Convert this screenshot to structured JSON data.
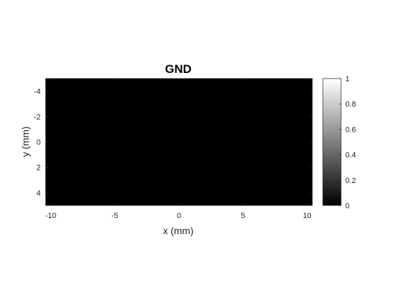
{
  "chart_data": {
    "type": "heatmap",
    "title": "GND",
    "xlabel": "x (mm)",
    "ylabel": "y (mm)",
    "xlim": [
      -10.4,
      10.4
    ],
    "ylim": [
      -5,
      5
    ],
    "y_reversed": true,
    "xticks": [
      -10,
      -5,
      0,
      5,
      10
    ],
    "yticks": [
      -4,
      -2,
      0,
      2,
      4
    ],
    "values": [
      [
        0
      ]
    ],
    "colormap": "gray",
    "clim": [
      0,
      1
    ],
    "colorbar": {
      "ticks": [
        0,
        0.2,
        0.4,
        0.6,
        0.8,
        1
      ],
      "tick_labels": [
        "0",
        "0.2",
        "0.4",
        "0.6",
        "0.8",
        "1"
      ]
    },
    "grid": false
  }
}
